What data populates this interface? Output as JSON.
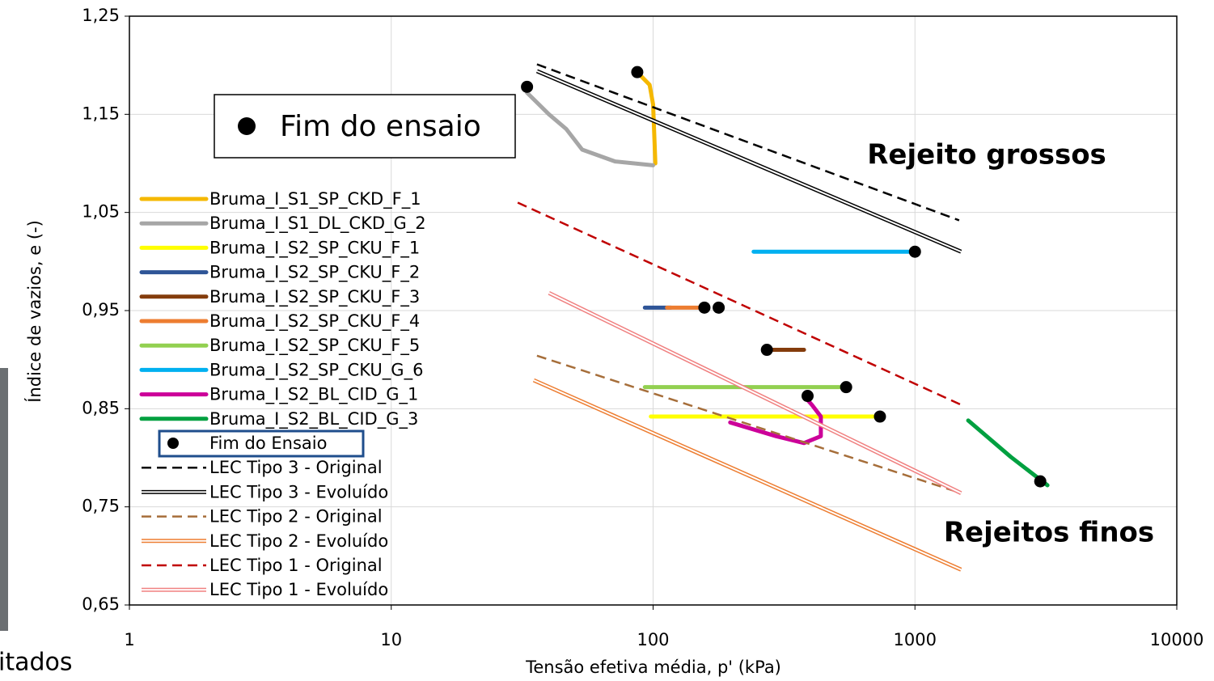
{
  "chart_data": {
    "type": "line",
    "xlabel": "Tensão efetiva média, p' (kPa)",
    "ylabel": "Índice de vazios, e (-)",
    "xscale": "log",
    "grid": true,
    "xlim": [
      1,
      10000
    ],
    "xticks": [
      1,
      10,
      100,
      1000,
      10000
    ],
    "ylim": [
      0.65,
      1.25
    ],
    "yticks": [
      {
        "value": 0.65,
        "label": "0,65"
      },
      {
        "value": 0.75,
        "label": "0,75"
      },
      {
        "value": 0.85,
        "label": "0,85"
      },
      {
        "value": 0.95,
        "label": "0,95"
      },
      {
        "value": 1.05,
        "label": "1,05"
      },
      {
        "value": 1.15,
        "label": "1,15"
      },
      {
        "value": 1.25,
        "label": "1,25"
      }
    ],
    "series": [
      {
        "name": "Bruma_I_S1_SP_CKD_F_1",
        "color": "#f5b800",
        "style": "solid",
        "x": [
          87,
          97,
          100,
          101,
          102
        ],
        "values": [
          1.193,
          1.18,
          1.16,
          1.13,
          1.1
        ]
      },
      {
        "name": "Bruma_I_S1_DL_CKD_G_2",
        "color": "#a6a6a6",
        "style": "solid",
        "x": [
          33,
          40,
          46.6,
          53.6,
          71.6,
          100
        ],
        "values": [
          1.172,
          1.15,
          1.135,
          1.114,
          1.102,
          1.098
        ]
      },
      {
        "name": "Bruma_I_S2_SP_CKU_F_1",
        "color": "#ffff00",
        "style": "solid",
        "x": [
          98,
          720
        ],
        "values": [
          0.842,
          0.842
        ]
      },
      {
        "name": "Bruma_I_S2_SP_CKU_F_2",
        "color": "#2f5597",
        "style": "solid",
        "x": [
          93,
          117
        ],
        "values": [
          0.953,
          0.953
        ]
      },
      {
        "name": "Bruma_I_S2_SP_CKU_F_3",
        "color": "#843c0c",
        "style": "solid",
        "x": [
          265,
          377
        ],
        "values": [
          0.91,
          0.91
        ]
      },
      {
        "name": "Bruma_I_S2_SP_CKU_F_4",
        "color": "#ed7d31",
        "style": "solid",
        "x": [
          113,
          156
        ],
        "values": [
          0.953,
          0.953
        ]
      },
      {
        "name": "Bruma_I_S2_SP_CKU_F_5",
        "color": "#92d050",
        "style": "solid",
        "x": [
          93,
          540
        ],
        "values": [
          0.872,
          0.872
        ]
      },
      {
        "name": "Bruma_I_S2_SP_CKU_G_6",
        "color": "#00b0f0",
        "style": "solid",
        "x": [
          242,
          1000
        ],
        "values": [
          1.01,
          1.01
        ]
      },
      {
        "name": "Bruma_I_S2_BL_CID_G_1",
        "color": "#cc0099",
        "style": "solid",
        "x": [
          197,
          295,
          377,
          437,
          437,
          404,
          377
        ],
        "values": [
          0.836,
          0.822,
          0.815,
          0.822,
          0.842,
          0.854,
          0.863
        ]
      },
      {
        "name": "Bruma_I_S2_BL_CID_G_3",
        "color": "#00a040",
        "style": "solid",
        "x": [
          1597,
          2320,
          3206
        ],
        "values": [
          0.838,
          0.801,
          0.772
        ]
      },
      {
        "name": "Fim do Ensaio",
        "color": "#000000",
        "style": "marker",
        "x": [
          87,
          33,
          1000,
          157,
          178,
          272,
          546,
          389,
          735,
          3010
        ],
        "values": [
          1.193,
          1.178,
          1.01,
          0.953,
          0.953,
          0.91,
          0.872,
          0.863,
          0.842,
          0.776
        ]
      },
      {
        "name": "LEC Tipo 3 - Original",
        "color": "#000000",
        "style": "dashed",
        "x": [
          36,
          1475
        ],
        "values": [
          1.201,
          1.042
        ]
      },
      {
        "name": "LEC Tipo 3 - Evoluído",
        "color": "#000000",
        "style": "double",
        "x": [
          36,
          1500
        ],
        "values": [
          1.194,
          1.01
        ]
      },
      {
        "name": "LEC Tipo 2 - Original",
        "color": "#a66e3a",
        "style": "dashed",
        "x": [
          36,
          1500
        ],
        "values": [
          0.904,
          0.764
        ]
      },
      {
        "name": "LEC Tipo 2 - Evoluído",
        "color": "#ed7d31",
        "style": "double",
        "x": [
          35,
          1500
        ],
        "values": [
          0.879,
          0.686
        ]
      },
      {
        "name": "LEC Tipo 1 - Original",
        "color": "#c00000",
        "style": "dashed",
        "x": [
          30.4,
          1500
        ],
        "values": [
          1.06,
          0.854
        ]
      },
      {
        "name": "LEC Tipo 1 - Evoluído",
        "color": "#f08080",
        "style": "double",
        "x": [
          40,
          1500
        ],
        "values": [
          0.968,
          0.764
        ]
      }
    ],
    "inset_label": "Fim do ensaio",
    "annotations": [
      {
        "text": "Rejeito grossos",
        "color": "#000000"
      },
      {
        "text": "Rejeitos finos",
        "color": "#e02020"
      }
    ],
    "cropped_text": "itados"
  }
}
